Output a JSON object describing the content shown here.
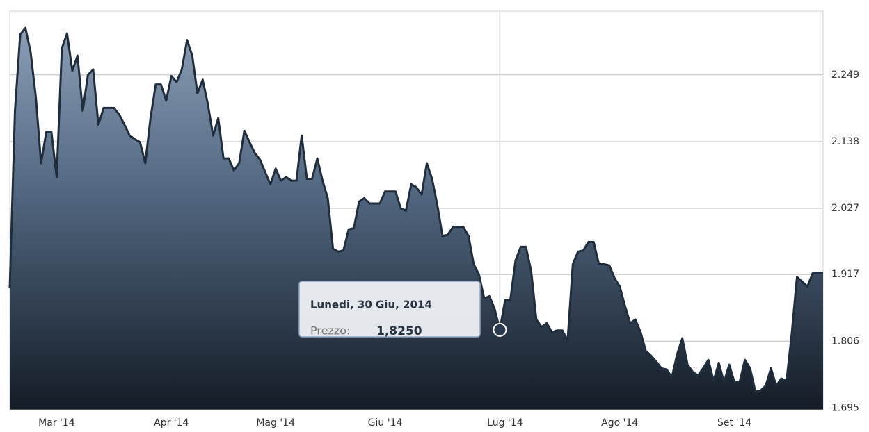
{
  "chart_data": {
    "type": "area",
    "categories": [
      null,
      null,
      null,
      null,
      null,
      null,
      null,
      null,
      null,
      "Mar '14",
      null,
      null,
      null,
      null,
      null,
      null,
      null,
      null,
      null,
      null,
      null,
      null,
      null,
      null,
      null,
      null,
      null,
      null,
      null,
      null,
      null,
      "Apr '14",
      null,
      null,
      null,
      null,
      null,
      null,
      null,
      null,
      null,
      null,
      null,
      null,
      null,
      null,
      null,
      null,
      null,
      null,
      null,
      "Mag '14",
      null,
      null,
      null,
      null,
      null,
      null,
      null,
      null,
      null,
      null,
      null,
      null,
      null,
      null,
      null,
      null,
      null,
      null,
      null,
      null,
      "Giu '14",
      null,
      null,
      null,
      null,
      null,
      null,
      null,
      null,
      null,
      null,
      null,
      null,
      null,
      null,
      null,
      null,
      null,
      null,
      null,
      null,
      null,
      null,
      "Lug '14",
      null,
      null,
      null,
      null,
      null,
      null,
      null,
      null,
      null,
      null,
      null,
      null,
      null,
      null,
      null,
      null,
      null,
      null,
      null,
      null,
      null,
      "Ago '14",
      null,
      null,
      null,
      null,
      null,
      null,
      null,
      null,
      null,
      null,
      null,
      null,
      null,
      null,
      null,
      null,
      null,
      null,
      null,
      null,
      null,
      "Set '14",
      null,
      null,
      null,
      null,
      null,
      null,
      null,
      null,
      null,
      null,
      null,
      null,
      null,
      null,
      null,
      null,
      null
    ],
    "series": [
      {
        "color": "#1f2d3d",
        "values": [
          1.894,
          2.189,
          2.316,
          2.327,
          2.287,
          2.212,
          2.102,
          2.154,
          2.154,
          2.079,
          2.293,
          2.318,
          2.256,
          2.281,
          2.189,
          2.249,
          2.258,
          2.166,
          2.194,
          2.194,
          2.194,
          2.183,
          2.166,
          2.148,
          2.142,
          2.137,
          2.102,
          2.177,
          2.233,
          2.233,
          2.206,
          2.247,
          2.237,
          2.258,
          2.307,
          2.281,
          2.218,
          2.241,
          2.2,
          2.148,
          2.177,
          2.11,
          2.11,
          2.09,
          2.102,
          2.156,
          2.137,
          2.119,
          2.108,
          2.087,
          2.067,
          2.093,
          2.073,
          2.079,
          2.073,
          2.073,
          2.148,
          2.076,
          2.076,
          2.11,
          2.073,
          2.044,
          1.96,
          1.955,
          1.957,
          1.992,
          1.994,
          2.038,
          2.044,
          2.035,
          2.035,
          2.035,
          2.055,
          2.055,
          2.055,
          2.027,
          2.023,
          2.067,
          2.062,
          2.05,
          2.102,
          2.076,
          2.033,
          1.981,
          1.983,
          1.996,
          1.996,
          1.996,
          1.981,
          1.934,
          1.917,
          1.877,
          1.881,
          1.86,
          1.825,
          1.874,
          1.874,
          1.94,
          1.963,
          1.963,
          1.923,
          1.842,
          1.83,
          1.836,
          1.821,
          1.824,
          1.824,
          1.807,
          1.934,
          1.955,
          1.957,
          1.971,
          1.971,
          1.934,
          1.934,
          1.932,
          1.911,
          1.897,
          1.865,
          1.836,
          1.842,
          1.821,
          1.79,
          1.782,
          1.772,
          1.761,
          1.759,
          1.746,
          1.784,
          1.811,
          1.767,
          1.755,
          1.749,
          1.761,
          1.775,
          1.74,
          1.77,
          1.738,
          1.767,
          1.738,
          1.738,
          1.775,
          1.761,
          1.723,
          1.724,
          1.732,
          1.761,
          1.732,
          1.744,
          1.74,
          1.819,
          1.913,
          1.905,
          1.897,
          1.919,
          1.92,
          1.92
        ]
      }
    ],
    "ylim": [
      1.692,
      2.355
    ],
    "yticks": [
      1.695,
      1.806,
      1.917,
      2.027,
      2.138,
      2.249
    ],
    "grid": true,
    "tooltip": {
      "title": "Lunedi, 30 Giu, 2014",
      "label": "Prezzo:",
      "value": 1.825,
      "value_label": "1,8250"
    }
  }
}
